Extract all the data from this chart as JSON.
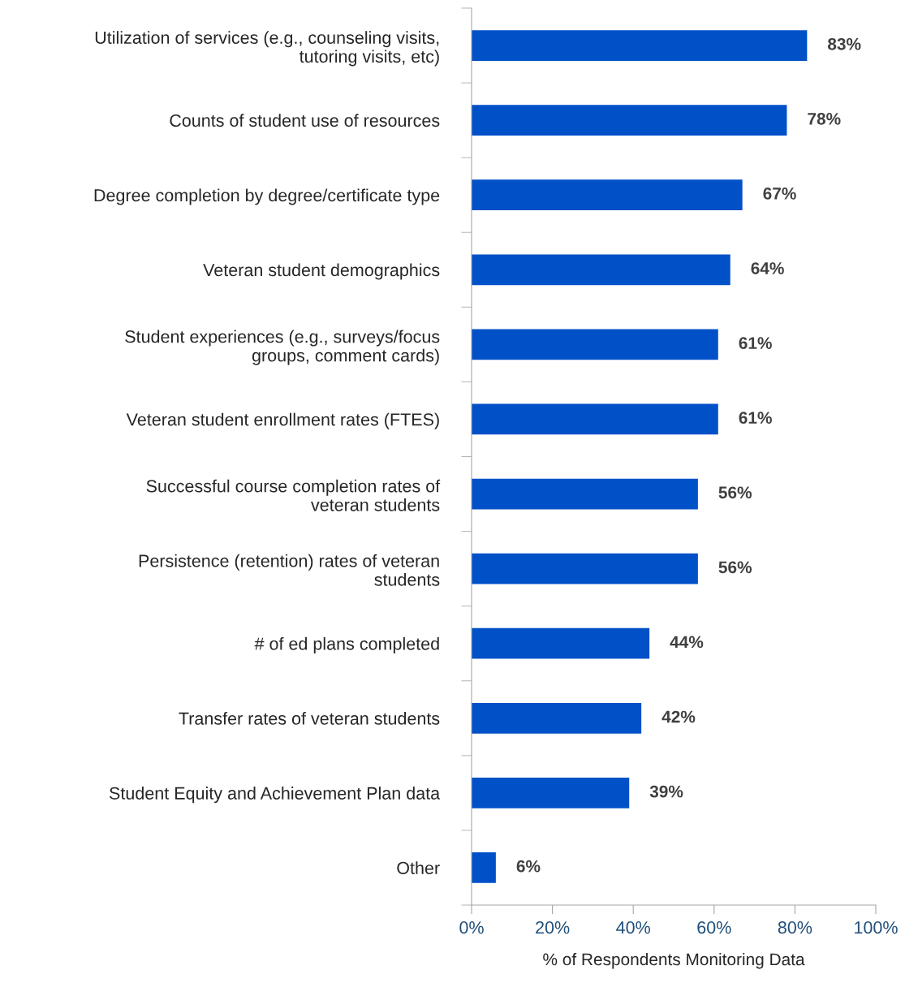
{
  "chart_data": {
    "type": "bar",
    "orientation": "horizontal",
    "xlabel": "% of Respondents Monitoring Data",
    "categories": [
      "Utilization of services (e.g., counseling visits,\ntutoring visits, etc)",
      "Counts of student use of resources",
      "Degree completion by degree/certificate type",
      "Veteran student demographics",
      "Student experiences (e.g., surveys/focus\ngroups, comment cards)",
      "Veteran student enrollment rates (FTES)",
      "Successful course completion rates of\nveteran students",
      "Persistence (retention) rates of veteran\nstudents",
      "# of ed plans completed",
      "Transfer rates of veteran students",
      "Student Equity and Achievement Plan data",
      "Other"
    ],
    "values": [
      83,
      78,
      67,
      64,
      61,
      61,
      56,
      56,
      44,
      42,
      39,
      6
    ],
    "value_labels": [
      "83%",
      "78%",
      "67%",
      "64%",
      "61%",
      "61%",
      "56%",
      "56%",
      "44%",
      "42%",
      "39%",
      "6%"
    ],
    "color": "#0050c8",
    "xlim": [
      0,
      100
    ],
    "xticks": [
      {
        "value": 0,
        "label": "0%"
      },
      {
        "value": 20,
        "label": "20%"
      },
      {
        "value": 40,
        "label": "40%"
      },
      {
        "value": 60,
        "label": "60%"
      },
      {
        "value": 80,
        "label": "80%"
      },
      {
        "value": 100,
        "label": "100%"
      }
    ],
    "grid": false,
    "legend": false
  }
}
